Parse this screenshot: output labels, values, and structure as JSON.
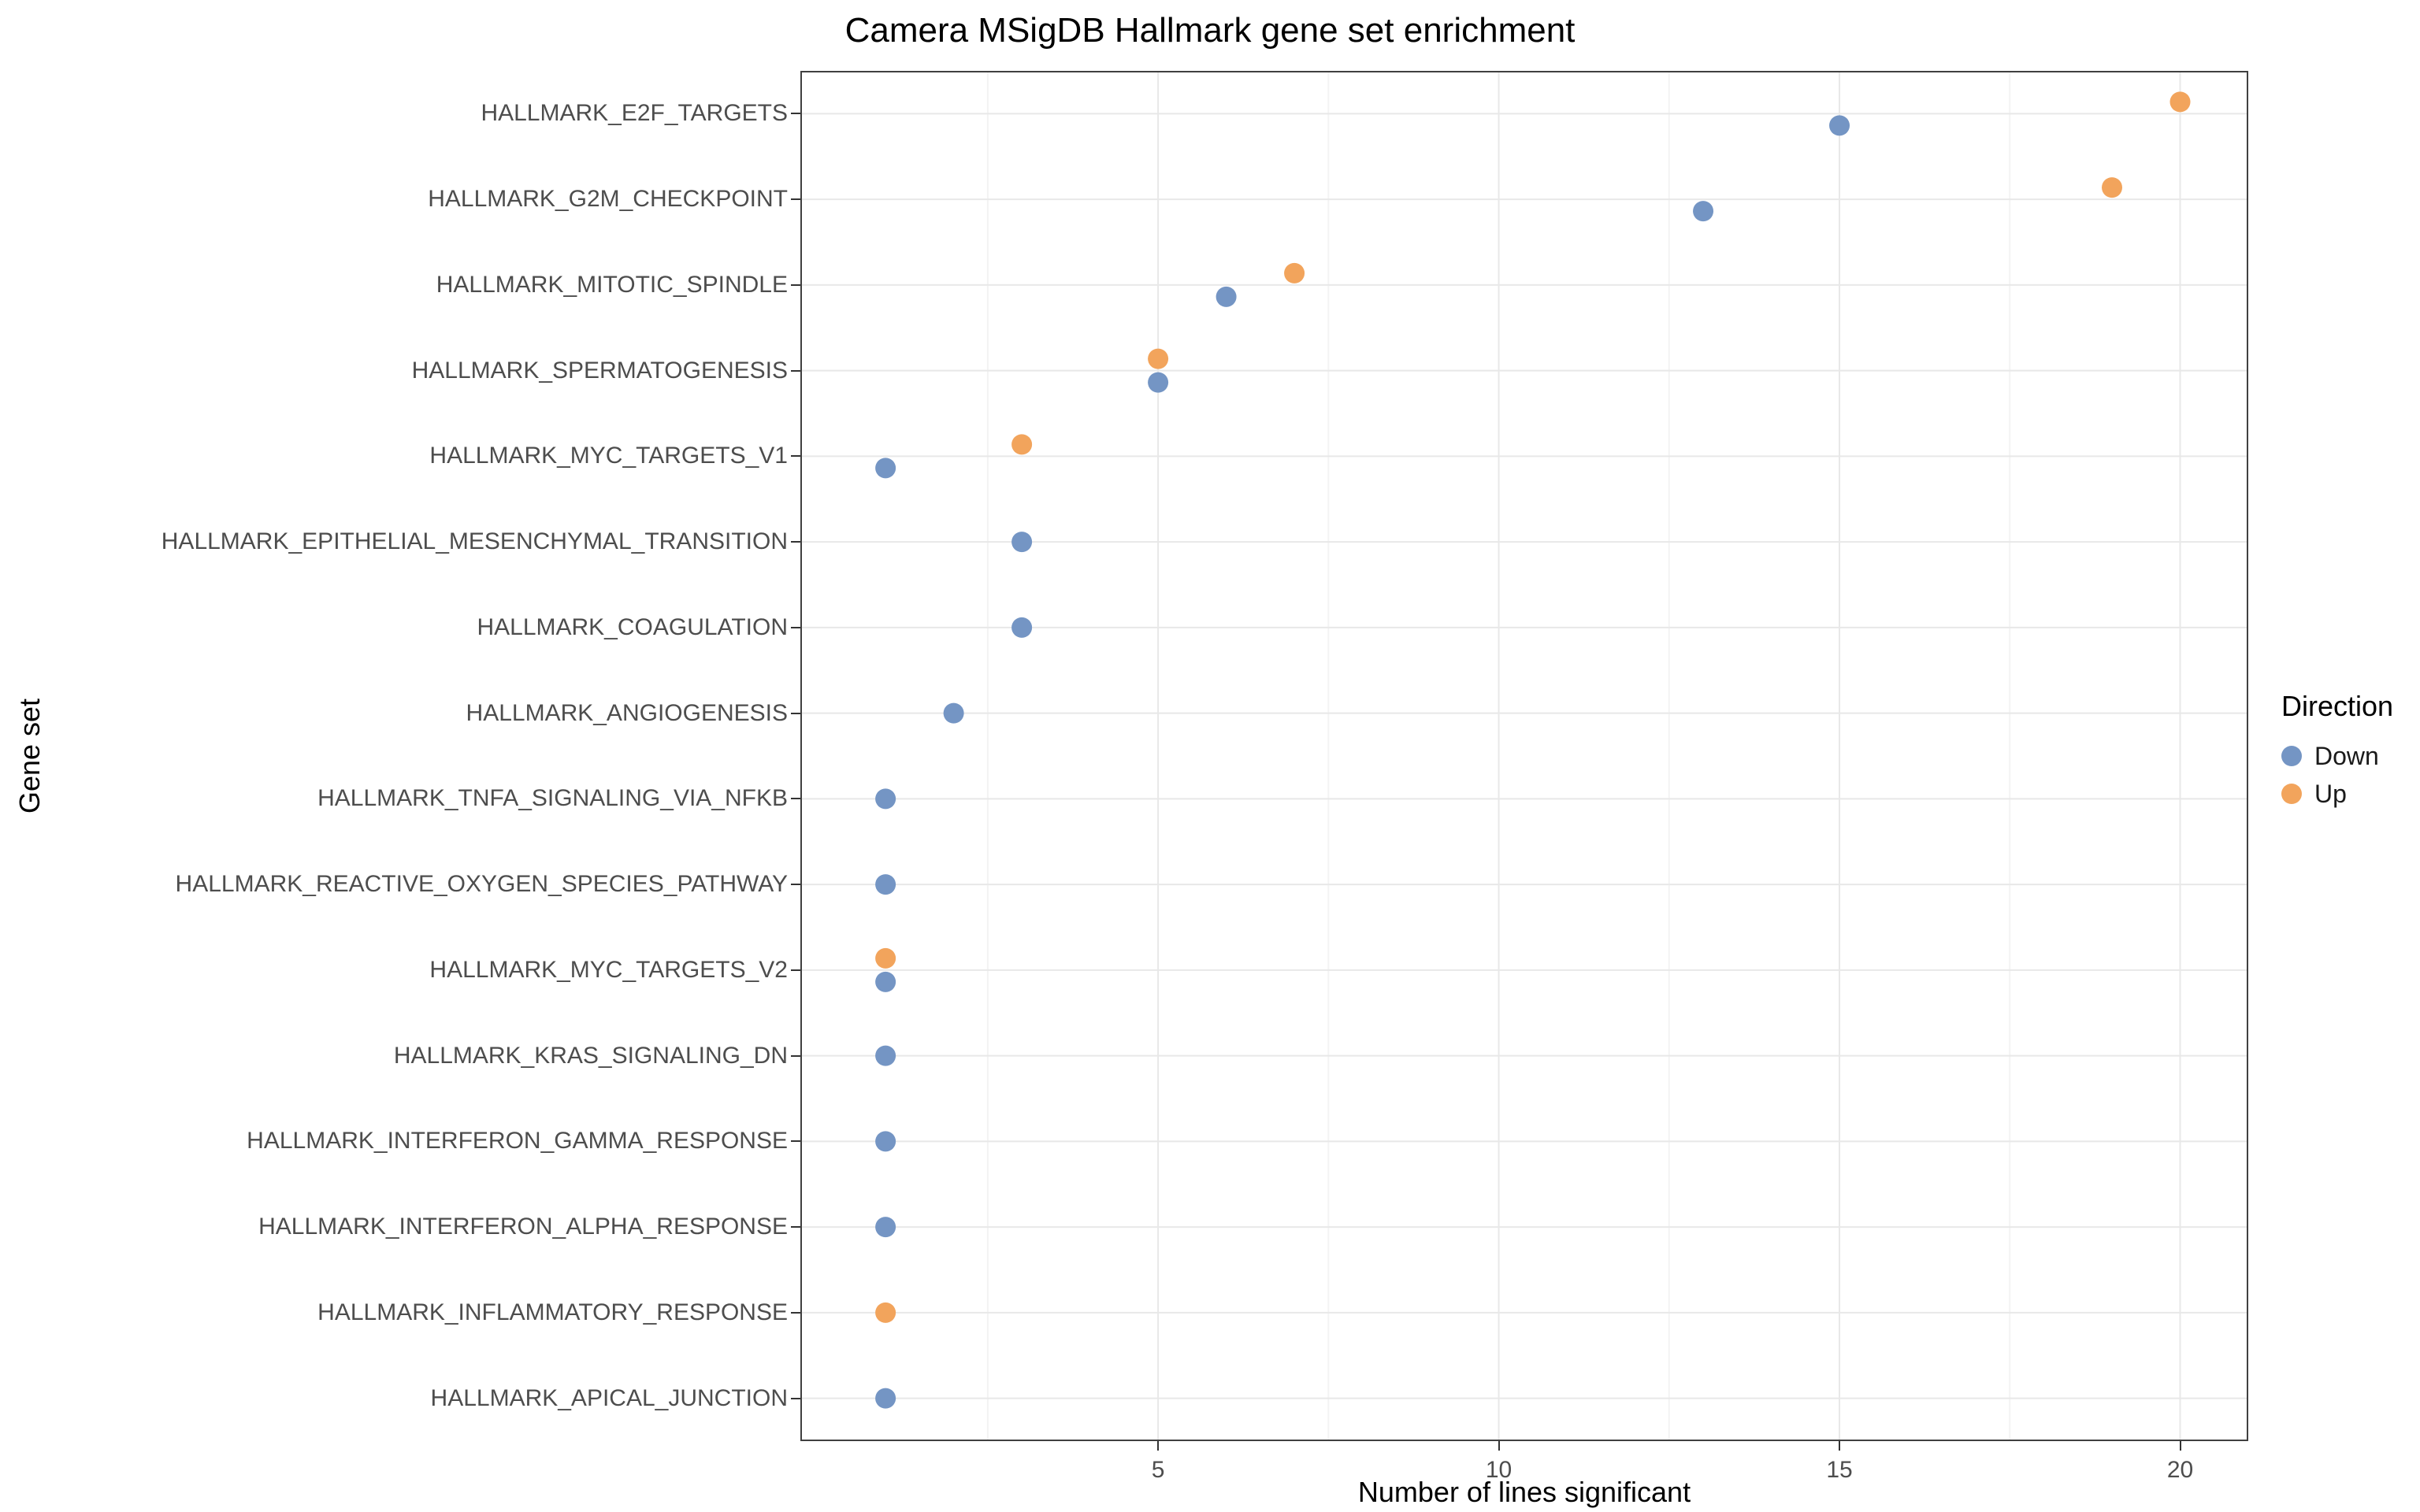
{
  "chart_data": {
    "type": "scatter",
    "title": "Camera MSigDB Hallmark gene set enrichment",
    "xlabel": "Number of lines significant",
    "ylabel": "Gene set",
    "x_ticks": [
      5,
      10,
      15,
      20
    ],
    "xlim": [
      -0.25,
      21
    ],
    "grid": "major",
    "grid_color": "#e8e8e8",
    "panel_border_color": "#404040",
    "point_radius": 13,
    "categories": [
      "HALLMARK_E2F_TARGETS",
      "HALLMARK_G2M_CHECKPOINT",
      "HALLMARK_MITOTIC_SPINDLE",
      "HALLMARK_SPERMATOGENESIS",
      "HALLMARK_MYC_TARGETS_V1",
      "HALLMARK_EPITHELIAL_MESENCHYMAL_TRANSITION",
      "HALLMARK_COAGULATION",
      "HALLMARK_ANGIOGENESIS",
      "HALLMARK_TNFA_SIGNALING_VIA_NFKB",
      "HALLMARK_REACTIVE_OXYGEN_SPECIES_PATHWAY",
      "HALLMARK_MYC_TARGETS_V2",
      "HALLMARK_KRAS_SIGNALING_DN",
      "HALLMARK_INTERFERON_GAMMA_RESPONSE",
      "HALLMARK_INTERFERON_ALPHA_RESPONSE",
      "HALLMARK_INFLAMMATORY_RESPONSE",
      "HALLMARK_APICAL_JUNCTION"
    ],
    "legend": {
      "title": "Direction",
      "position": "right",
      "entries": [
        {
          "label": "Down",
          "color": "#7495c4"
        },
        {
          "label": "Up",
          "color": "#f2a45c"
        }
      ]
    },
    "series": [
      {
        "name": "Down",
        "color": "#7495c4",
        "points": {
          "HALLMARK_E2F_TARGETS": 15,
          "HALLMARK_G2M_CHECKPOINT": 13,
          "HALLMARK_MITOTIC_SPINDLE": 6,
          "HALLMARK_SPERMATOGENESIS": 5,
          "HALLMARK_MYC_TARGETS_V1": 1,
          "HALLMARK_EPITHELIAL_MESENCHYMAL_TRANSITION": 3,
          "HALLMARK_COAGULATION": 3,
          "HALLMARK_ANGIOGENESIS": 2,
          "HALLMARK_TNFA_SIGNALING_VIA_NFKB": 1,
          "HALLMARK_REACTIVE_OXYGEN_SPECIES_PATHWAY": 1,
          "HALLMARK_MYC_TARGETS_V2": 1,
          "HALLMARK_KRAS_SIGNALING_DN": 1,
          "HALLMARK_INTERFERON_GAMMA_RESPONSE": 1,
          "HALLMARK_INTERFERON_ALPHA_RESPONSE": 1,
          "HALLMARK_APICAL_JUNCTION": 1
        }
      },
      {
        "name": "Up",
        "color": "#f2a45c",
        "points": {
          "HALLMARK_E2F_TARGETS": 20,
          "HALLMARK_G2M_CHECKPOINT": 19,
          "HALLMARK_MITOTIC_SPINDLE": 7,
          "HALLMARK_SPERMATOGENESIS": 5,
          "HALLMARK_MYC_TARGETS_V1": 3,
          "HALLMARK_MYC_TARGETS_V2": 1,
          "HALLMARK_INFLAMMATORY_RESPONSE": 1
        }
      }
    ]
  }
}
